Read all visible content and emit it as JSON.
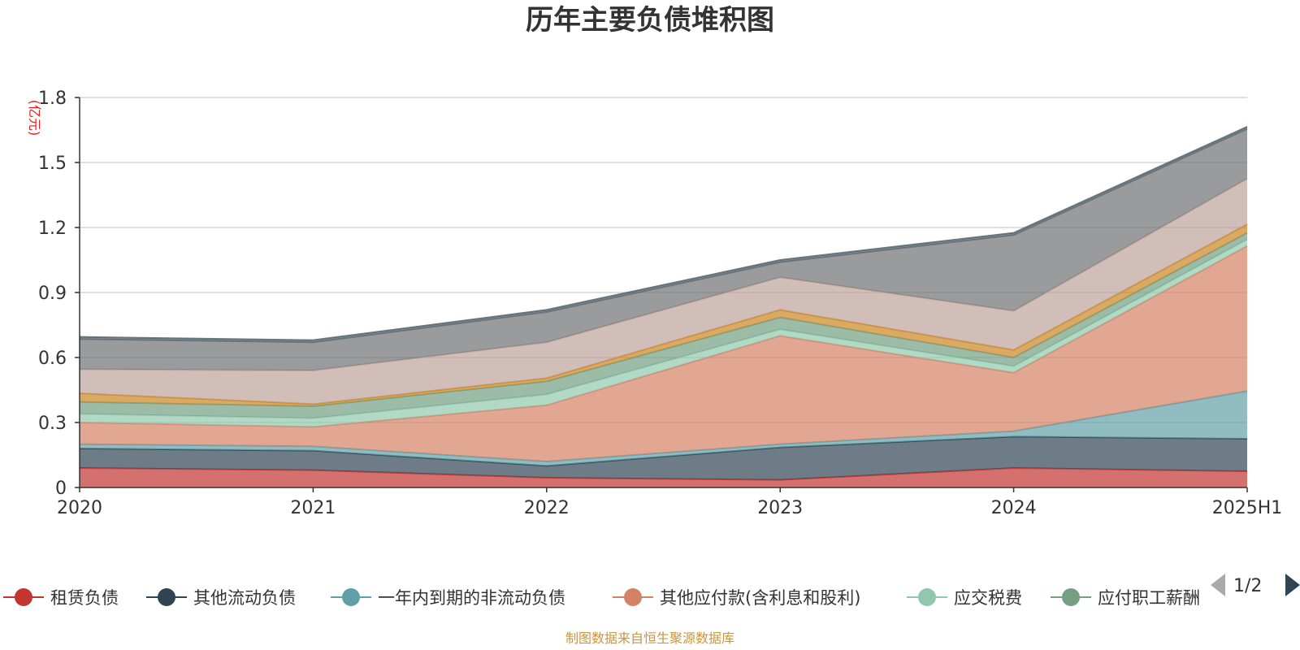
{
  "chart_data": {
    "type": "area",
    "stacked": true,
    "title": "历年主要负债堆积图",
    "unit_label": "(亿元)",
    "x": [
      "2020",
      "2021",
      "2022",
      "2023",
      "2024",
      "2025H1"
    ],
    "ylim": [
      0,
      1.8
    ],
    "yticks": [
      0,
      0.3,
      0.6,
      0.9,
      1.2,
      1.5,
      1.8
    ],
    "ytick_labels": [
      "0",
      "0.3",
      "0.6",
      "0.9",
      "1.2",
      "1.5",
      "1.8"
    ],
    "grid": true,
    "series": [
      {
        "name": "租赁负债",
        "values": [
          0.09,
          0.08,
          0.045,
          0.035,
          0.09,
          0.075
        ],
        "color": "#c23531"
      },
      {
        "name": "其他流动负债",
        "values": [
          0.09,
          0.09,
          0.055,
          0.15,
          0.145,
          0.15
        ],
        "color": "#2f4554"
      },
      {
        "name": "一年内到期的非流动负债",
        "values": [
          0.02,
          0.02,
          0.02,
          0.015,
          0.025,
          0.22
        ],
        "color": "#61a0a8"
      },
      {
        "name": "其他应付款(含利息和股利)",
        "values": [
          0.1,
          0.09,
          0.26,
          0.5,
          0.27,
          0.67
        ],
        "color": "#d48265"
      },
      {
        "name": "应交税费",
        "values": [
          0.04,
          0.04,
          0.05,
          0.03,
          0.03,
          0.03
        ],
        "color": "#91c7ae"
      },
      {
        "name": "应付职工薪酬",
        "values": [
          0.055,
          0.055,
          0.06,
          0.055,
          0.04,
          0.03
        ],
        "color": "#749f83"
      },
      {
        "name": "",
        "values": [
          0.04,
          0.01,
          0.015,
          0.035,
          0.035,
          0.04
        ],
        "color": "#ca8622"
      },
      {
        "name": "",
        "values": [
          0.11,
          0.155,
          0.165,
          0.15,
          0.18,
          0.21
        ],
        "color": "#bda29a"
      },
      {
        "name": "",
        "values": [
          0.14,
          0.13,
          0.14,
          0.07,
          0.35,
          0.23
        ],
        "color": "#6e7074"
      },
      {
        "name": "",
        "values": [
          0.01,
          0.01,
          0.01,
          0.01,
          0.01,
          0.01
        ],
        "color": "#546570"
      }
    ],
    "legend": {
      "placement": "bottom",
      "visible_items": [
        "租赁负债",
        "其他流动负债",
        "一年内到期的非流动负债",
        "其他应付款(含利息和股利)",
        "应交税费",
        "应付职工薪酬"
      ],
      "last_item_visible_text": "应付职工薪酬",
      "page_indicator": "1/2"
    }
  },
  "footer": {
    "source": "制图数据来自恒生聚源数据库"
  }
}
